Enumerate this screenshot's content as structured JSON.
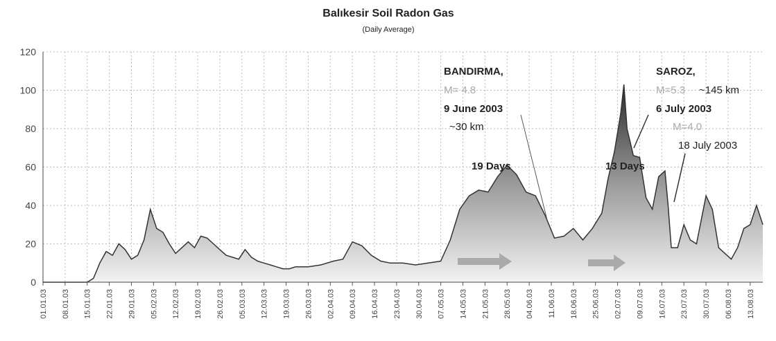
{
  "chart_data": {
    "type": "area",
    "title": "Balıkesir Soil Radon Gas",
    "subtitle": "(Daily Average)",
    "x": [
      "01.01.03",
      "08.01.03",
      "15.01.03",
      "17.01.03",
      "19.01.03",
      "21.01.03",
      "23.01.03",
      "25.01.03",
      "27.01.03",
      "29.01.03",
      "31.01.03",
      "02.02.03",
      "04.02.03",
      "06.02.03",
      "08.02.03",
      "10.02.03",
      "12.02.03",
      "14.02.03",
      "16.02.03",
      "18.02.03",
      "20.02.03",
      "22.02.03",
      "24.02.03",
      "26.02.03",
      "28.02.03",
      "02.03.03",
      "04.03.03",
      "06.03.03",
      "08.03.03",
      "10.03.03",
      "12.03.03",
      "14.03.03",
      "16.03.03",
      "18.03.03",
      "20.03.03",
      "22.03.03",
      "26.03.03",
      "30.03.03",
      "03.04.03",
      "06.04.03",
      "09.04.03",
      "12.04.03",
      "15.04.03",
      "18.04.03",
      "21.04.03",
      "25.04.03",
      "29.04.03",
      "03.05.03",
      "07.05.03",
      "10.05.03",
      "13.05.03",
      "16.05.03",
      "19.05.03",
      "22.05.03",
      "25.05.03",
      "28.05.03",
      "31.05.03",
      "03.06.03",
      "06.06.03",
      "09.06.03",
      "12.06.03",
      "15.06.03",
      "18.06.03",
      "21.06.03",
      "24.06.03",
      "27.06.03",
      "29.06.03",
      "01.07.03",
      "03.07.03",
      "04.07.03",
      "05.07.03",
      "07.07.03",
      "09.07.03",
      "11.07.03",
      "13.07.03",
      "15.07.03",
      "17.07.03",
      "18.07.03",
      "19.07.03",
      "21.07.03",
      "23.07.03",
      "25.07.03",
      "27.07.03",
      "30.07.03",
      "01.08.03",
      "03.08.03",
      "05.08.03",
      "07.08.03",
      "09.08.03",
      "11.08.03",
      "13.08.03",
      "15.08.03",
      "17.08.03"
    ],
    "values": [
      0,
      0,
      0,
      2,
      10,
      16,
      14,
      20,
      17,
      12,
      14,
      22,
      38,
      28,
      26,
      20,
      15,
      18,
      21,
      18,
      24,
      23,
      20,
      17,
      14,
      13,
      12,
      17,
      13,
      11,
      10,
      9,
      8,
      7,
      7,
      8,
      8,
      9,
      11,
      12,
      21,
      19,
      14,
      11,
      10,
      10,
      9,
      10,
      11,
      22,
      38,
      45,
      48,
      47,
      55,
      61,
      56,
      47,
      45,
      35,
      23,
      24,
      28,
      22,
      28,
      36,
      54,
      68,
      88,
      103,
      80,
      66,
      65,
      44,
      38,
      55,
      58,
      40,
      18,
      18,
      30,
      22,
      20,
      45,
      38,
      18,
      15,
      12,
      18,
      28,
      30,
      40,
      30
    ],
    "color": "#333333",
    "xlim": [
      "01.01.03",
      "17.08.03"
    ],
    "xticks": [
      "01.01.03",
      "08.01.03",
      "15.01.03",
      "22.01.03",
      "29.01.03",
      "05.02.03",
      "12.02.03",
      "19.02.03",
      "26.02.03",
      "05.03.03",
      "12.03.03",
      "19.03.03",
      "26.03.03",
      "02.04.03",
      "09.04.03",
      "16.04.03",
      "23.04.03",
      "30.04.03",
      "07.05.03",
      "14.05.03",
      "21.05.03",
      "28.05.03",
      "04.06.03",
      "11.06.03",
      "18.06.03",
      "25.06.03",
      "02.07.03",
      "09.07.03",
      "16.07.03",
      "23.07.03",
      "30.07.03",
      "06.08.03",
      "13.08.03"
    ],
    "ylim": [
      0,
      120
    ],
    "yticks": [
      0,
      20,
      40,
      60,
      80,
      100,
      120
    ],
    "grid": true,
    "annotations": [
      "BANDIRMA,",
      "M= 4.8",
      "9 June 2003",
      "~30 km",
      "SAROZ,",
      "M=5.3",
      "~145 km",
      "6 July 2003",
      "M=4.0",
      "18 July 2003",
      "19 Days",
      "13 Days"
    ]
  }
}
